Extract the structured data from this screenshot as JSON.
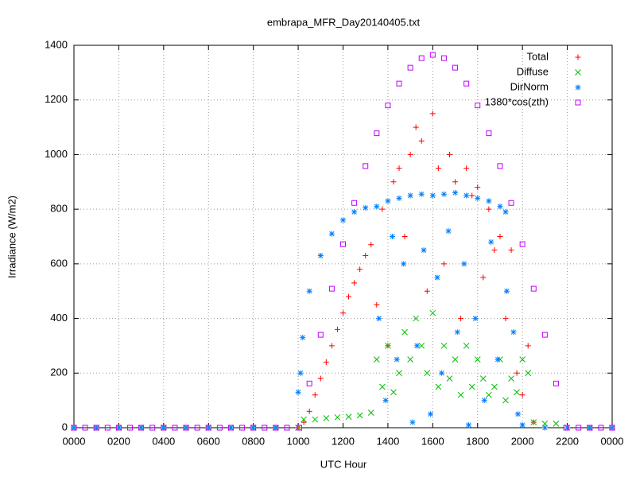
{
  "chart_data": {
    "type": "scatter",
    "title": "embrapa_MFR_Day20140405.txt",
    "x_label": "UTC Hour",
    "y_label": "Irradiance (W/m2)",
    "xlim": [
      0,
      24
    ],
    "xticks": [
      {
        "value": 0,
        "label": "0000"
      },
      {
        "value": 2,
        "label": "0200"
      },
      {
        "value": 4,
        "label": "0400"
      },
      {
        "value": 6,
        "label": "0600"
      },
      {
        "value": 8,
        "label": "0800"
      },
      {
        "value": 10,
        "label": "1000"
      },
      {
        "value": 12,
        "label": "1200"
      },
      {
        "value": 14,
        "label": "1400"
      },
      {
        "value": 16,
        "label": "1600"
      },
      {
        "value": 18,
        "label": "1800"
      },
      {
        "value": 20,
        "label": "2000"
      },
      {
        "value": 22,
        "label": "2200"
      },
      {
        "value": 24,
        "label": "0000"
      }
    ],
    "ylim": [
      0,
      1400
    ],
    "yticks": [
      0,
      200,
      400,
      600,
      800,
      1000,
      1200,
      1400
    ],
    "grid": true,
    "legend": "top-right",
    "series": [
      {
        "name": "Total",
        "color": "#ff0000",
        "marker": "plus",
        "x": [
          0,
          1,
          2,
          3,
          4,
          5,
          6,
          7,
          8,
          9,
          10,
          10.25,
          10.5,
          10.75,
          11,
          11.25,
          11.5,
          11.75,
          12,
          12.25,
          12.5,
          12.75,
          13,
          13.25,
          13.5,
          13.75,
          14,
          14.25,
          14.5,
          14.75,
          15,
          15.25,
          15.5,
          15.75,
          16,
          16.25,
          16.5,
          16.75,
          17,
          17.25,
          17.5,
          17.75,
          18,
          18.25,
          18.5,
          18.75,
          19,
          19.25,
          19.5,
          19.75,
          20,
          20.25,
          20.5,
          21,
          22,
          23,
          24
        ],
        "values": [
          0,
          0,
          0,
          0,
          0,
          0,
          0,
          0,
          0,
          0,
          0,
          20,
          60,
          120,
          180,
          240,
          300,
          360,
          420,
          480,
          530,
          580,
          630,
          670,
          450,
          800,
          300,
          900,
          950,
          700,
          1000,
          1100,
          1050,
          500,
          1150,
          950,
          600,
          1000,
          900,
          400,
          950,
          850,
          880,
          550,
          800,
          650,
          700,
          400,
          650,
          200,
          120,
          300,
          20,
          0,
          0,
          0,
          0
        ]
      },
      {
        "name": "Diffuse",
        "color": "#00c000",
        "marker": "cross",
        "x": [
          0,
          1,
          2,
          3,
          4,
          5,
          6,
          7,
          8,
          9,
          10,
          10.25,
          10.75,
          11.25,
          11.75,
          12.25,
          12.75,
          13.25,
          13.5,
          13.75,
          14,
          14.25,
          14.5,
          14.75,
          15,
          15.25,
          15.5,
          15.75,
          16,
          16.25,
          16.5,
          16.75,
          17,
          17.25,
          17.5,
          17.75,
          18,
          18.25,
          18.5,
          18.75,
          19,
          19.25,
          19.5,
          19.75,
          20,
          20.25,
          20.5,
          21,
          21.5,
          22,
          23,
          24
        ],
        "values": [
          0,
          0,
          0,
          0,
          0,
          0,
          0,
          0,
          0,
          0,
          0,
          30,
          30,
          35,
          38,
          40,
          45,
          55,
          250,
          150,
          300,
          130,
          200,
          350,
          250,
          400,
          300,
          200,
          420,
          150,
          300,
          180,
          250,
          120,
          300,
          150,
          250,
          180,
          120,
          150,
          250,
          100,
          180,
          130,
          250,
          200,
          20,
          15,
          15,
          0,
          0,
          0
        ]
      },
      {
        "name": "DirNorm",
        "color": "#0080ff",
        "marker": "star",
        "x": [
          0,
          1,
          2,
          3,
          4,
          5,
          6,
          7,
          8,
          9,
          10,
          10.1,
          10.2,
          10.5,
          11,
          11.5,
          12,
          12.5,
          13,
          13.5,
          14,
          14.5,
          15,
          15.5,
          16,
          16.5,
          17,
          17.5,
          18,
          18.5,
          19,
          19.25,
          13.6,
          13.9,
          14.2,
          14.4,
          14.7,
          15.1,
          15.3,
          15.6,
          15.9,
          16.2,
          16.4,
          16.7,
          17.1,
          17.4,
          17.6,
          17.9,
          18.3,
          18.6,
          18.9,
          19.3,
          19.6,
          19.8,
          20,
          21,
          22,
          23,
          24
        ],
        "values": [
          0,
          0,
          0,
          0,
          0,
          0,
          0,
          0,
          0,
          0,
          130,
          200,
          330,
          500,
          630,
          710,
          760,
          790,
          805,
          810,
          830,
          840,
          850,
          855,
          850,
          855,
          860,
          850,
          840,
          830,
          810,
          790,
          400,
          100,
          700,
          250,
          600,
          20,
          300,
          650,
          50,
          550,
          200,
          720,
          350,
          600,
          10,
          400,
          100,
          680,
          250,
          500,
          350,
          50,
          10,
          0,
          0,
          0,
          0
        ]
      },
      {
        "name": "1380*cos(zth)",
        "color": "#c000ff",
        "marker": "square",
        "x": [
          0,
          0.5,
          1,
          1.5,
          2,
          2.5,
          3,
          3.5,
          4,
          4.5,
          5,
          5.5,
          6,
          6.5,
          7,
          7.5,
          8,
          8.5,
          9,
          9.5,
          10.05,
          10.5,
          11,
          11.5,
          12,
          12.5,
          13,
          13.5,
          14,
          14.5,
          15,
          15.5,
          16,
          16.5,
          17,
          17.5,
          18,
          18.5,
          19,
          19.5,
          20,
          20.5,
          21,
          21.5,
          21.95,
          22.5,
          23,
          23.5,
          24
        ],
        "values": [
          0,
          0,
          0,
          0,
          0,
          0,
          0,
          0,
          0,
          0,
          0,
          0,
          0,
          0,
          0,
          0,
          0,
          0,
          0,
          0,
          0,
          162,
          340,
          509,
          672,
          823,
          958,
          1078,
          1180,
          1260,
          1318,
          1353,
          1365,
          1353,
          1318,
          1260,
          1180,
          1078,
          958,
          823,
          672,
          509,
          340,
          162,
          0,
          0,
          0,
          0,
          0
        ]
      }
    ]
  }
}
